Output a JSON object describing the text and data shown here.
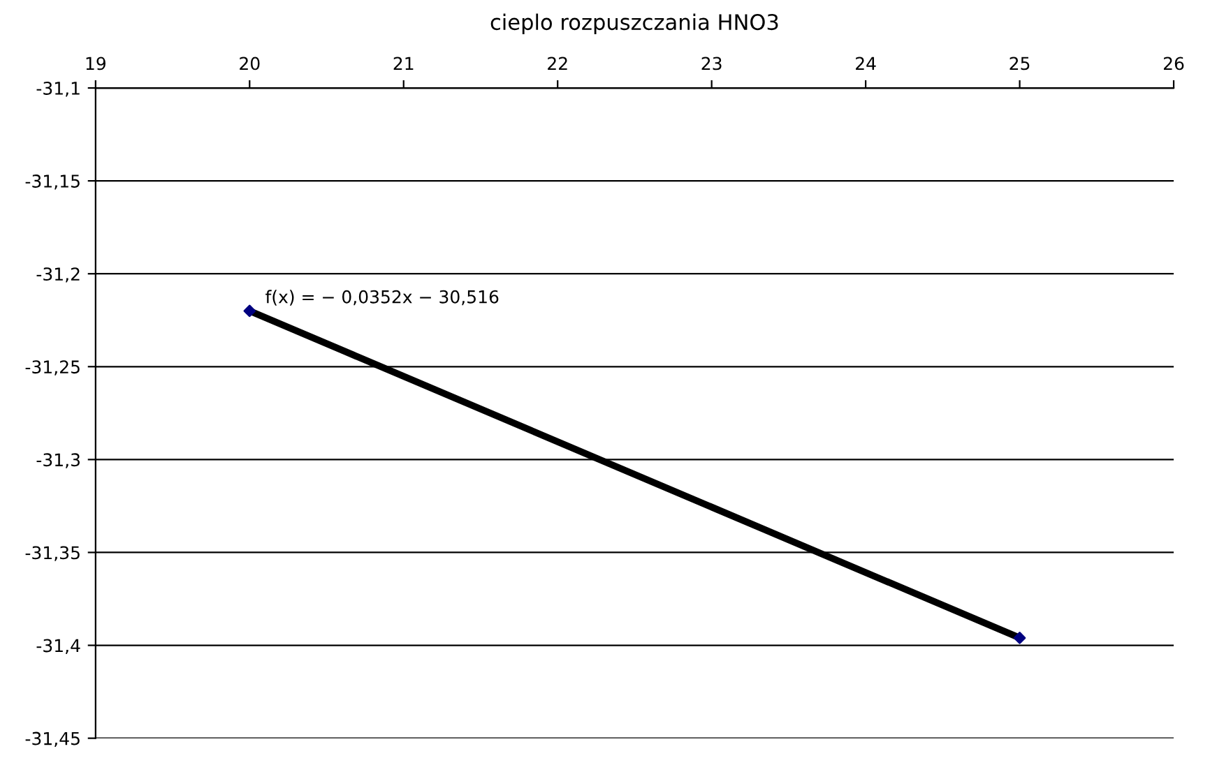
{
  "chart_data": {
    "type": "scatter",
    "title": "cieplo rozpuszczania HNO3",
    "series": [
      {
        "type": "line",
        "color": "#000000",
        "values": [
          -31.22,
          -31.396
        ],
        "marker": "none",
        "line_style": "solid"
      },
      {
        "color": "#000080",
        "values": [
          -31.22,
          -31.396
        ],
        "marker": "diamond"
      }
    ],
    "x": [
      20,
      25
    ],
    "xlim": [
      19,
      26
    ],
    "xticks": [
      19,
      20,
      21,
      22,
      23,
      24,
      25,
      26
    ],
    "ylim": [
      -31.45,
      -31.1
    ],
    "yticks": [
      {
        "value": -31.45,
        "label": "-31,45"
      },
      {
        "value": -31.4,
        "label": "-31,4"
      },
      {
        "value": -31.35,
        "label": "-31,35"
      },
      {
        "value": -31.3,
        "label": "-31,3"
      },
      {
        "value": -31.25,
        "label": "-31,25"
      },
      {
        "value": -31.2,
        "label": "-31,2"
      },
      {
        "value": -31.15,
        "label": "-31,15"
      },
      {
        "value": -31.1,
        "label": "-31,1"
      }
    ],
    "grid": "y",
    "legend": false,
    "annotations": [
      {
        "text": "f(x) = − 0,0352x − 30,516",
        "x": 20,
        "y": -31.22
      }
    ]
  }
}
